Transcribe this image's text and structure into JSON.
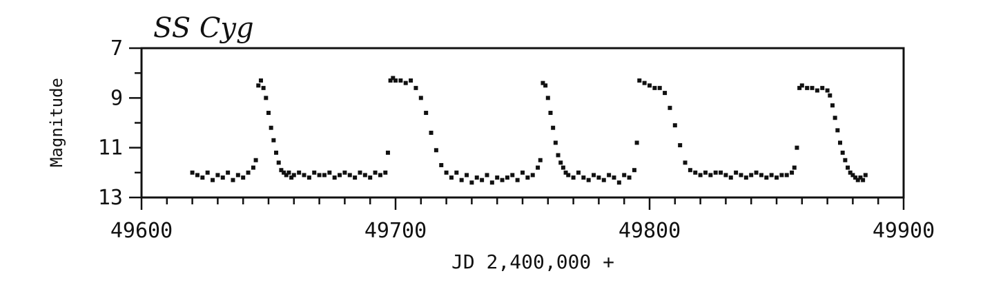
{
  "chart_data": {
    "type": "scatter",
    "title": "SS Cyg",
    "xlabel": "JD 2,400,000 +",
    "ylabel": "Magnitude",
    "xlim": [
      49600,
      49900
    ],
    "ylim": [
      13,
      7
    ],
    "y_inverted": true,
    "grid": false,
    "x_ticks": [
      49600,
      49700,
      49800,
      49900
    ],
    "x_tick_labels": [
      "49600",
      "49700",
      "49800",
      "49900"
    ],
    "x_minor_step": 10,
    "y_ticks": [
      7,
      9,
      11,
      13
    ],
    "y_tick_labels": [
      "7",
      "9",
      "11",
      "13"
    ],
    "y_minor_step": 1,
    "point_color": "#111111",
    "series": [
      {
        "x": [
          49620,
          49622,
          49624,
          49626,
          49628,
          49630,
          49632,
          49634,
          49636,
          49638,
          49640,
          49642,
          49644,
          49645,
          49646,
          49647,
          49648,
          49649,
          49650,
          49651,
          49652,
          49653,
          49654,
          49655,
          49656,
          49657,
          49658,
          49659,
          49660,
          49662,
          49664,
          49666,
          49668,
          49670,
          49672,
          49674,
          49676,
          49678,
          49680,
          49682,
          49684,
          49686,
          49688,
          49690,
          49692,
          49694,
          49696,
          49697,
          49698,
          49699,
          49700,
          49702,
          49704,
          49706,
          49708,
          49710,
          49712,
          49714,
          49716,
          49718,
          49720,
          49722,
          49724,
          49726,
          49728,
          49730,
          49732,
          49734,
          49736,
          49738,
          49740,
          49742,
          49744,
          49746,
          49748,
          49750,
          49752,
          49754,
          49756,
          49757,
          49758,
          49759,
          49760,
          49761,
          49762,
          49763,
          49764,
          49765,
          49766,
          49767,
          49768,
          49770,
          49772,
          49774,
          49776,
          49778,
          49780,
          49782,
          49784,
          49786,
          49788,
          49790,
          49792,
          49794,
          49795,
          49796,
          49798,
          49800,
          49802,
          49804,
          49806,
          49808,
          49810,
          49812,
          49814,
          49816,
          49818,
          49820,
          49822,
          49824,
          49826,
          49828,
          49830,
          49832,
          49834,
          49836,
          49838,
          49840,
          49842,
          49844,
          49846,
          49848,
          49850,
          49852,
          49854,
          49856,
          49857,
          49858,
          49859,
          49860,
          49862,
          49864,
          49866,
          49868,
          49870,
          49871,
          49872,
          49873,
          49874,
          49875,
          49876,
          49877,
          49878,
          49879,
          49880,
          49881,
          49882,
          49883,
          49884,
          49885
        ],
        "y": [
          12.0,
          12.1,
          12.2,
          12.0,
          12.3,
          12.1,
          12.2,
          12.0,
          12.3,
          12.1,
          12.2,
          12.0,
          11.8,
          11.5,
          8.5,
          8.3,
          8.6,
          9.0,
          9.6,
          10.2,
          10.7,
          11.2,
          11.6,
          11.9,
          12.0,
          12.1,
          12.0,
          12.2,
          12.1,
          12.0,
          12.1,
          12.2,
          12.0,
          12.1,
          12.1,
          12.0,
          12.2,
          12.1,
          12.0,
          12.1,
          12.2,
          12.0,
          12.1,
          12.2,
          12.0,
          12.1,
          12.0,
          11.2,
          8.3,
          8.2,
          8.3,
          8.3,
          8.4,
          8.3,
          8.6,
          9.0,
          9.6,
          10.4,
          11.1,
          11.7,
          12.0,
          12.2,
          12.0,
          12.3,
          12.1,
          12.4,
          12.2,
          12.3,
          12.1,
          12.4,
          12.2,
          12.3,
          12.2,
          12.1,
          12.3,
          12.0,
          12.2,
          12.1,
          11.8,
          11.5,
          8.4,
          8.5,
          9.0,
          9.6,
          10.2,
          10.8,
          11.3,
          11.6,
          11.8,
          12.0,
          12.1,
          12.2,
          12.0,
          12.2,
          12.3,
          12.1,
          12.2,
          12.3,
          12.1,
          12.2,
          12.4,
          12.1,
          12.2,
          11.9,
          10.8,
          8.3,
          8.4,
          8.5,
          8.6,
          8.6,
          8.8,
          9.4,
          10.1,
          10.9,
          11.6,
          11.9,
          12.0,
          12.1,
          12.0,
          12.1,
          12.0,
          12.0,
          12.1,
          12.2,
          12.0,
          12.1,
          12.2,
          12.1,
          12.0,
          12.1,
          12.2,
          12.1,
          12.2,
          12.1,
          12.1,
          12.0,
          11.8,
          11.0,
          8.6,
          8.5,
          8.6,
          8.6,
          8.7,
          8.6,
          8.7,
          8.9,
          9.3,
          9.8,
          10.3,
          10.8,
          11.2,
          11.5,
          11.8,
          12.0,
          12.1,
          12.2,
          12.3,
          12.2,
          12.3,
          12.1
        ]
      }
    ]
  }
}
